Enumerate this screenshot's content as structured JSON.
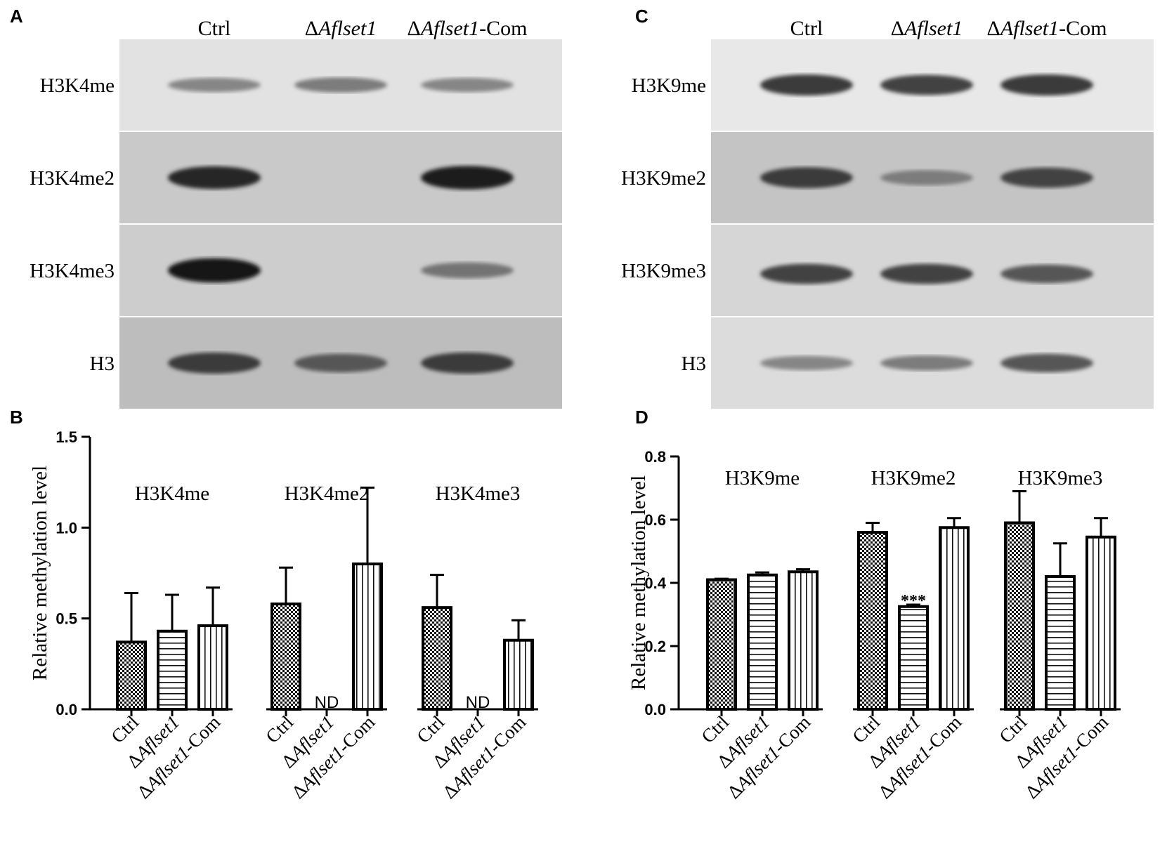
{
  "figure_title": "",
  "panels": {
    "A": {
      "letter": "A",
      "lanes": [
        {
          "pre": "Δ",
          "ital": "",
          "post": "Ctrl"
        },
        {
          "pre": "Δ",
          "ital": "Aflset1",
          "post": ""
        },
        {
          "pre": "Δ",
          "ital": "Aflset1",
          "post": "-Com"
        }
      ],
      "rows": [
        "H3K4me",
        "H3K4me2",
        "H3K4me3",
        "H3"
      ],
      "bands": [
        [
          0.35,
          0.4,
          0.35
        ],
        [
          0.85,
          0.0,
          0.9
        ],
        [
          0.95,
          0.0,
          0.45
        ],
        [
          0.75,
          0.6,
          0.75
        ]
      ]
    },
    "C": {
      "letter": "C",
      "lanes": [
        {
          "pre": "Δ",
          "ital": "",
          "post": "Ctrl"
        },
        {
          "pre": "Δ",
          "ital": "Aflset1",
          "post": ""
        },
        {
          "pre": "Δ",
          "ital": "Aflset1",
          "post": "-Com"
        }
      ],
      "rows": [
        "H3K9me",
        "H3K9me2",
        "H3K9me3",
        "H3"
      ],
      "bands": [
        [
          0.75,
          0.7,
          0.75
        ],
        [
          0.75,
          0.4,
          0.7
        ],
        [
          0.7,
          0.7,
          0.6
        ],
        [
          0.35,
          0.4,
          0.6
        ]
      ]
    }
  },
  "chart_data": [
    {
      "panel": "B",
      "type": "bar",
      "title": "",
      "ylabel": "Relative methylation level",
      "ylim": [
        0,
        1.5
      ],
      "yticks": [
        "0.0",
        "0.5",
        "1.0",
        "1.5"
      ],
      "groups": [
        "H3K4me",
        "H3K4me2",
        "H3K4me3"
      ],
      "series_labels": [
        {
          "pre": "",
          "ital": "",
          "post": "Ctrl"
        },
        {
          "pre": "Δ",
          "ital": "Aflset1",
          "post": ""
        },
        {
          "pre": "Δ",
          "ital": "Aflset1",
          "post": "-Com"
        }
      ],
      "values": [
        [
          0.37,
          0.43,
          0.46
        ],
        [
          0.58,
          0,
          0.8
        ],
        [
          0.56,
          0,
          0.38
        ]
      ],
      "errors": [
        [
          0.27,
          0.2,
          0.21
        ],
        [
          0.2,
          0,
          0.42
        ],
        [
          0.18,
          0,
          0.11
        ]
      ],
      "annotations": [
        [
          "",
          "",
          ""
        ],
        [
          "",
          "ND",
          ""
        ],
        [
          "",
          "ND",
          ""
        ]
      ]
    },
    {
      "panel": "D",
      "type": "bar",
      "title": "",
      "ylabel": "Relative methylation level",
      "ylim": [
        0,
        0.8
      ],
      "yticks": [
        "0.0",
        "0.2",
        "0.4",
        "0.6",
        "0.8"
      ],
      "groups": [
        "H3K9me",
        "H3K9me2",
        "H3K9me3"
      ],
      "series_labels": [
        {
          "pre": "",
          "ital": "",
          "post": "Ctrl"
        },
        {
          "pre": "Δ",
          "ital": "Aflset1",
          "post": ""
        },
        {
          "pre": "Δ",
          "ital": "Aflset1",
          "post": "-Com"
        }
      ],
      "values": [
        [
          0.41,
          0.425,
          0.435
        ],
        [
          0.56,
          0.325,
          0.575
        ],
        [
          0.59,
          0.42,
          0.545
        ]
      ],
      "errors": [
        [
          0.003,
          0.008,
          0.008
        ],
        [
          0.03,
          0.006,
          0.03
        ],
        [
          0.1,
          0.105,
          0.06
        ]
      ],
      "annotations": [
        [
          "",
          "",
          ""
        ],
        [
          "",
          "***",
          ""
        ],
        [
          "",
          "",
          ""
        ]
      ]
    }
  ],
  "bar_patterns": [
    "checker",
    "horizontal",
    "vertical"
  ]
}
